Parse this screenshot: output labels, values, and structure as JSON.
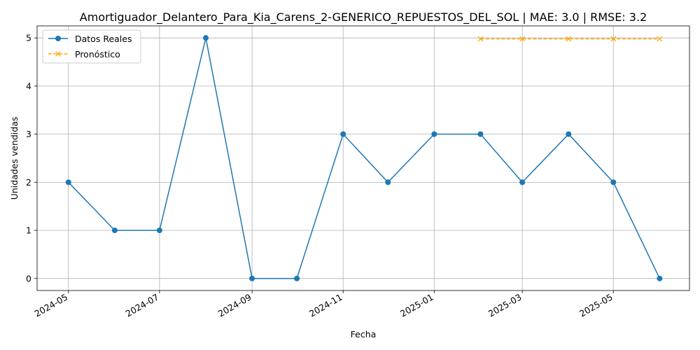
{
  "chart_data": {
    "type": "line",
    "title": "Amortiguador_Delantero_Para_Kia_Carens_2-GENERICO_REPUESTOS_DEL_SOL | MAE: 3.0 | RMSE: 3.2",
    "xlabel": "Fecha",
    "ylabel": "Unidades vendidas",
    "ylim": [
      -0.25,
      5.25
    ],
    "xlim": [
      "2024-04-10",
      "2025-06-21"
    ],
    "grid": true,
    "legend_position": "upper-left",
    "x_ticks": [
      "2024-05",
      "2024-07",
      "2024-09",
      "2024-11",
      "2025-01",
      "2025-03",
      "2025-05"
    ],
    "y_ticks": [
      "0",
      "1",
      "2",
      "3",
      "4",
      "5"
    ],
    "series": [
      {
        "name": "Datos Reales",
        "color": "#1f77b4",
        "marker": "circle",
        "style": "solid",
        "x": [
          "2024-05-01",
          "2024-06-01",
          "2024-07-01",
          "2024-08-01",
          "2024-09-01",
          "2024-10-01",
          "2024-11-01",
          "2024-12-01",
          "2025-01-01",
          "2025-02-01",
          "2025-03-01",
          "2025-04-01",
          "2025-05-01",
          "2025-06-01"
        ],
        "y": [
          2,
          1,
          1,
          5,
          0,
          0,
          3,
          2,
          3,
          3,
          2,
          3,
          2,
          0
        ]
      },
      {
        "name": "Pronóstico",
        "color": "#ffa500",
        "marker": "x",
        "style": "dashed",
        "x": [
          "2025-02-01",
          "2025-03-01",
          "2025-04-01",
          "2025-05-01",
          "2025-06-01"
        ],
        "y": [
          4.98,
          4.98,
          4.98,
          4.98,
          4.98
        ]
      }
    ]
  }
}
